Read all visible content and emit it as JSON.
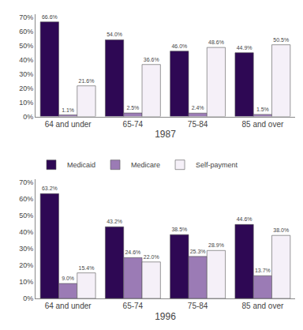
{
  "chart_data": [
    {
      "type": "bar",
      "xlabel": "1987",
      "categories": [
        "64 and under",
        "65-74",
        "75-84",
        "85 and over"
      ],
      "series": [
        {
          "name": "Medicaid",
          "color": "#2E0854",
          "values": [
            66.6,
            54.0,
            46.0,
            44.9
          ],
          "value_labels": [
            "66.6%",
            "54.0%",
            "46.0%",
            "44.9%"
          ]
        },
        {
          "name": "Medicare",
          "color": "#9B7BB5",
          "values": [
            1.1,
            2.5,
            2.4,
            1.5
          ],
          "value_labels": [
            "1.1%",
            "2.5%",
            "2.4%",
            "1.5%"
          ]
        },
        {
          "name": "Self-payment",
          "color": "#F5F0F8",
          "values": [
            21.6,
            36.6,
            48.6,
            50.5
          ],
          "value_labels": [
            "21.6%",
            "36.6%",
            "48.6%",
            "50.5%"
          ]
        }
      ],
      "ylim": [
        0,
        72
      ],
      "yticks": [
        {
          "value": 0,
          "label": "0%"
        },
        {
          "value": 10,
          "label": "10%"
        },
        {
          "value": 20,
          "label": "20%"
        },
        {
          "value": 30,
          "label": "30%"
        },
        {
          "value": 40,
          "label": "40%"
        },
        {
          "value": 50,
          "label": "50%"
        },
        {
          "value": 60,
          "label": "60%"
        },
        {
          "value": 70,
          "label": "70%"
        }
      ],
      "grid": false,
      "data_labels": true
    },
    {
      "type": "bar",
      "xlabel": "1996",
      "categories": [
        "64 and under",
        "65-74",
        "75-84",
        "85 and over"
      ],
      "series": [
        {
          "name": "Medicaid",
          "color": "#2E0854",
          "values": [
            63.2,
            43.2,
            38.5,
            44.6
          ],
          "value_labels": [
            "63.2%",
            "43.2%",
            "38.5%",
            "44.6%"
          ]
        },
        {
          "name": "Medicare",
          "color": "#9B7BB5",
          "values": [
            9.0,
            24.6,
            25.3,
            13.7
          ],
          "value_labels": [
            "9.0%",
            "24.6%",
            "25.3%",
            "13.7%"
          ]
        },
        {
          "name": "Self-payment",
          "color": "#F5F0F8",
          "values": [
            15.4,
            22.0,
            28.9,
            38.0
          ],
          "value_labels": [
            "15.4%",
            "22.0%",
            "28.9%",
            "38.0%"
          ]
        }
      ],
      "ylim": [
        0,
        72
      ],
      "yticks": [
        {
          "value": 0,
          "label": "0%"
        },
        {
          "value": 10,
          "label": "10%"
        },
        {
          "value": 20,
          "label": "20%"
        },
        {
          "value": 30,
          "label": "30%"
        },
        {
          "value": 40,
          "label": "40%"
        },
        {
          "value": 50,
          "label": "50%"
        },
        {
          "value": 60,
          "label": "60%"
        },
        {
          "value": 70,
          "label": "70%"
        }
      ],
      "grid": false,
      "data_labels": true,
      "legend": "upper left"
    }
  ]
}
